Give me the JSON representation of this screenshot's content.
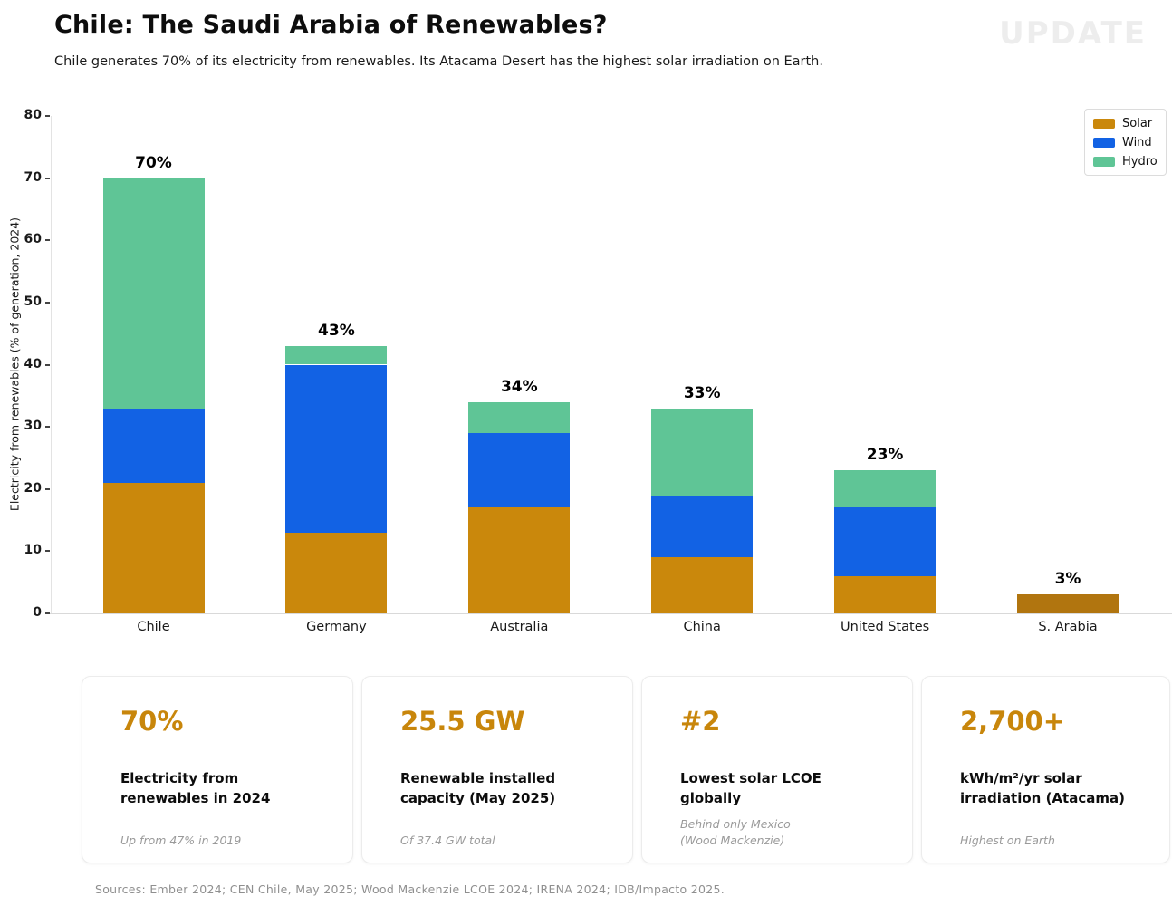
{
  "header": {
    "title": "Chile: The Saudi Arabia of Renewables?",
    "subtitle": "Chile generates 70% of its electricity from renewables. Its Atacama Desert has the highest solar irradiation on Earth.",
    "watermark": "UPDATE"
  },
  "chart_data": {
    "type": "bar",
    "stacked": true,
    "title": "",
    "xlabel": "",
    "ylabel": "Electricity from renewables (% of generation, 2024)",
    "ylim": [
      0,
      80
    ],
    "yticks": [
      0,
      10,
      20,
      30,
      40,
      50,
      60,
      70,
      80
    ],
    "grid": false,
    "legend_position": "top-right",
    "categories": [
      "Chile",
      "Germany",
      "Australia",
      "China",
      "United States",
      "S. Arabia"
    ],
    "series": [
      {
        "name": "Solar",
        "color": "#CA880C",
        "values": [
          21,
          13,
          17,
          9,
          6,
          3
        ],
        "bar_colors": [
          "#CA880C",
          "#CA880C",
          "#CA880C",
          "#CA880C",
          "#CA880C",
          "#B1750F"
        ]
      },
      {
        "name": "Wind",
        "color": "#1262E4",
        "values": [
          12,
          27,
          12,
          10,
          11,
          0
        ]
      },
      {
        "name": "Hydro",
        "color": "#5FC596",
        "values": [
          37,
          3,
          5,
          14,
          6,
          0
        ]
      }
    ],
    "totals": [
      70,
      43,
      34,
      33,
      23,
      3
    ],
    "total_labels": [
      "70%",
      "43%",
      "34%",
      "33%",
      "23%",
      "3%"
    ]
  },
  "cards": [
    {
      "value": "70%",
      "label": "Electricity from\nrenewables in 2024",
      "footnote": "Up from 47% in 2019"
    },
    {
      "value": "25.5 GW",
      "label": "Renewable installed\ncapacity (May 2025)",
      "footnote": "Of 37.4 GW total"
    },
    {
      "value": "#2",
      "label": "Lowest solar LCOE\nglobally",
      "footnote": "Behind only Mexico\n(Wood Mackenzie)"
    },
    {
      "value": "2,700+",
      "label": "kWh/m²/yr solar\nirradiation (Atacama)",
      "footnote": "Highest on Earth"
    }
  ],
  "footer": {
    "sources": "Sources: Ember 2024; CEN Chile, May 2025; Wood Mackenzie LCOE 2024; IRENA 2024; IDB/Impacto 2025."
  },
  "colors": {
    "accent_gold": "#C8860B",
    "solar": "#CA880C",
    "wind": "#1262E4",
    "hydro": "#5FC596"
  }
}
